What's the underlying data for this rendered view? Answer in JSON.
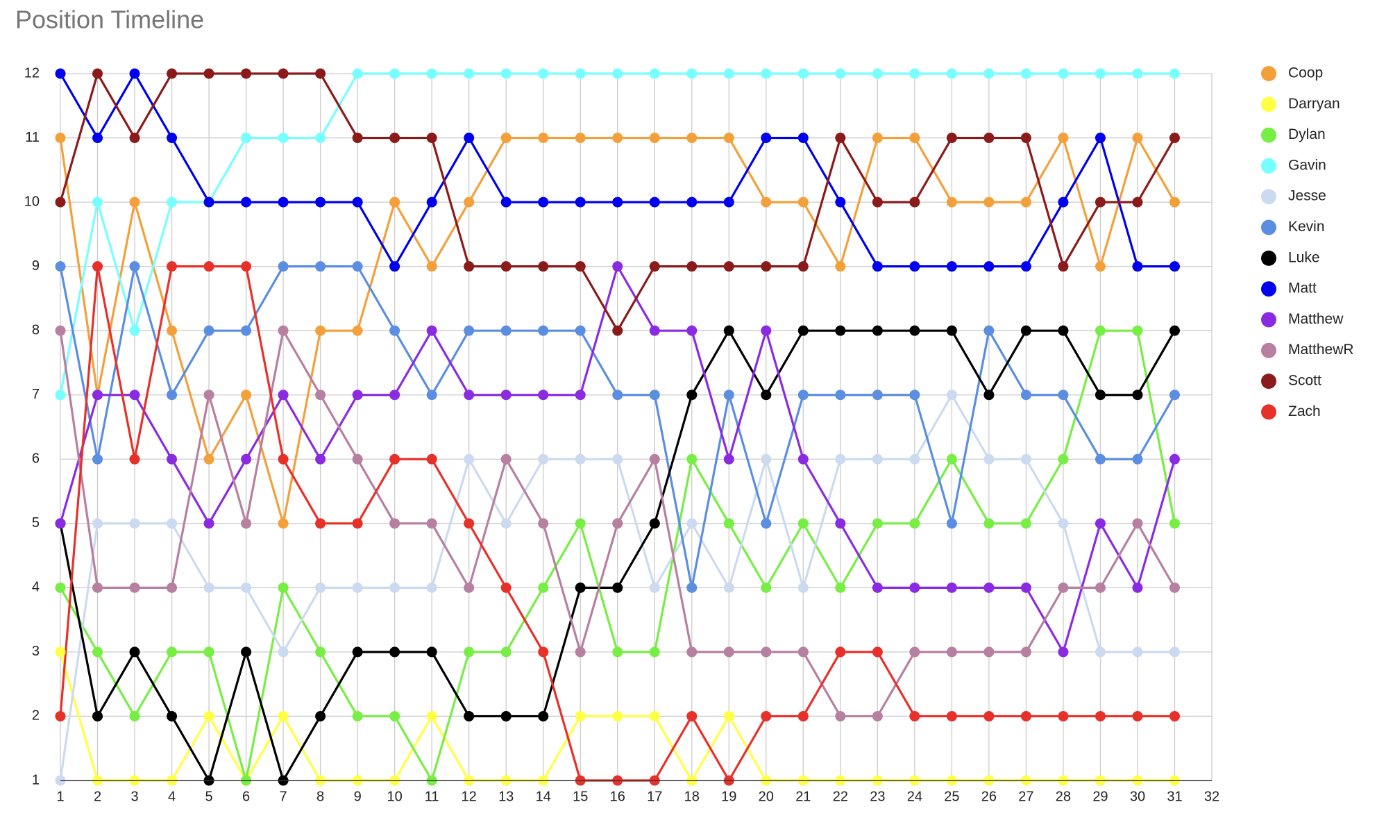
{
  "chart_data": {
    "type": "line",
    "title": "Position Timeline",
    "x": [
      1,
      2,
      3,
      4,
      5,
      6,
      7,
      8,
      9,
      10,
      11,
      12,
      13,
      14,
      15,
      16,
      17,
      18,
      19,
      20,
      21,
      22,
      23,
      24,
      25,
      26,
      27,
      28,
      29,
      30,
      31
    ],
    "xlim": [
      1,
      32
    ],
    "xticks": [
      1,
      2,
      3,
      4,
      5,
      6,
      7,
      8,
      9,
      10,
      11,
      12,
      13,
      14,
      15,
      16,
      17,
      18,
      19,
      20,
      21,
      22,
      23,
      24,
      25,
      26,
      27,
      28,
      29,
      30,
      31,
      32
    ],
    "ylim": [
      1,
      12
    ],
    "yticks": [
      1,
      2,
      3,
      4,
      5,
      6,
      7,
      8,
      9,
      10,
      11,
      12
    ],
    "grid": true,
    "legend": "right",
    "series": [
      {
        "name": "Coop",
        "color": "#f4a03a",
        "values": [
          11,
          7,
          10,
          8,
          6,
          7,
          5,
          8,
          8,
          10,
          9,
          10,
          11,
          11,
          11,
          11,
          11,
          11,
          11,
          10,
          10,
          9,
          11,
          11,
          10,
          10,
          10,
          11,
          9,
          11,
          10
        ]
      },
      {
        "name": "Darryan",
        "color": "#ffff44",
        "values": [
          3,
          1,
          1,
          1,
          2,
          1,
          2,
          1,
          1,
          1,
          2,
          1,
          1,
          1,
          2,
          2,
          2,
          1,
          2,
          1,
          1,
          1,
          1,
          1,
          1,
          1,
          1,
          1,
          1,
          1,
          1
        ]
      },
      {
        "name": "Dylan",
        "color": "#77ee44",
        "values": [
          4,
          3,
          2,
          3,
          3,
          1,
          4,
          3,
          2,
          2,
          1,
          3,
          3,
          4,
          5,
          3,
          3,
          6,
          5,
          4,
          5,
          4,
          5,
          5,
          6,
          5,
          5,
          6,
          8,
          8,
          5
        ]
      },
      {
        "name": "Gavin",
        "color": "#77ffff",
        "values": [
          7,
          10,
          8,
          10,
          10,
          11,
          11,
          11,
          12,
          12,
          12,
          12,
          12,
          12,
          12,
          12,
          12,
          12,
          12,
          12,
          12,
          12,
          12,
          12,
          12,
          12,
          12,
          12,
          12,
          12,
          12
        ]
      },
      {
        "name": "Jesse",
        "color": "#ccdaf0",
        "values": [
          1,
          5,
          5,
          5,
          4,
          4,
          3,
          4,
          4,
          4,
          4,
          6,
          5,
          6,
          6,
          6,
          4,
          5,
          4,
          6,
          4,
          6,
          6,
          6,
          7,
          6,
          6,
          5,
          3,
          3,
          3
        ]
      },
      {
        "name": "Kevin",
        "color": "#5b8ee0",
        "values": [
          9,
          6,
          9,
          7,
          8,
          8,
          9,
          9,
          9,
          8,
          7,
          8,
          8,
          8,
          8,
          7,
          7,
          4,
          7,
          5,
          7,
          7,
          7,
          7,
          5,
          8,
          7,
          7,
          6,
          6,
          7
        ]
      },
      {
        "name": "Luke",
        "color": "#000000",
        "values": [
          5,
          2,
          3,
          2,
          1,
          3,
          1,
          2,
          3,
          3,
          3,
          2,
          2,
          2,
          4,
          4,
          5,
          7,
          8,
          7,
          8,
          8,
          8,
          8,
          8,
          7,
          8,
          8,
          7,
          7,
          8
        ]
      },
      {
        "name": "Matt",
        "color": "#0000ee",
        "values": [
          12,
          11,
          12,
          11,
          10,
          10,
          10,
          10,
          10,
          9,
          10,
          11,
          10,
          10,
          10,
          10,
          10,
          10,
          10,
          11,
          11,
          10,
          9,
          9,
          9,
          9,
          9,
          10,
          11,
          9,
          9
        ]
      },
      {
        "name": "Matthew",
        "color": "#8a2be2",
        "values": [
          5,
          7,
          7,
          6,
          5,
          6,
          7,
          6,
          7,
          7,
          8,
          7,
          7,
          7,
          7,
          9,
          8,
          8,
          6,
          8,
          6,
          5,
          4,
          4,
          4,
          4,
          4,
          3,
          5,
          4,
          6
        ]
      },
      {
        "name": "MatthewR",
        "color": "#b77fa0",
        "values": [
          8,
          4,
          4,
          4,
          7,
          5,
          8,
          7,
          6,
          5,
          5,
          4,
          6,
          5,
          3,
          5,
          6,
          3,
          3,
          3,
          3,
          2,
          2,
          3,
          3,
          3,
          3,
          4,
          4,
          5,
          4
        ]
      },
      {
        "name": "Scott",
        "color": "#8b1a1a",
        "values": [
          10,
          12,
          11,
          12,
          12,
          12,
          12,
          12,
          11,
          11,
          11,
          9,
          9,
          9,
          9,
          8,
          9,
          9,
          9,
          9,
          9,
          11,
          10,
          10,
          11,
          11,
          11,
          9,
          10,
          10,
          11
        ]
      },
      {
        "name": "Zach",
        "color": "#e8302a",
        "values": [
          2,
          9,
          6,
          9,
          9,
          9,
          6,
          5,
          5,
          6,
          6,
          5,
          4,
          3,
          1,
          1,
          1,
          2,
          1,
          2,
          2,
          3,
          3,
          2,
          2,
          2,
          2,
          2,
          2,
          2,
          2
        ]
      }
    ]
  }
}
